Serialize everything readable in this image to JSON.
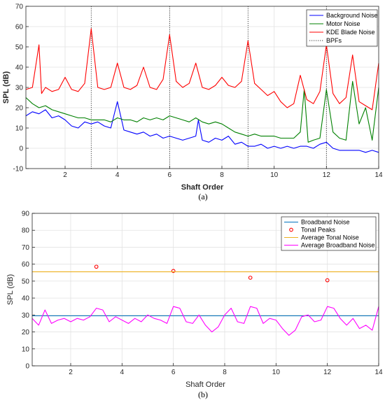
{
  "chart_data": [
    {
      "type": "line",
      "panel_label": "(a)",
      "xlabel": "Shaft Order",
      "ylabel": "SPL (dB)",
      "xlim": [
        0.5,
        14
      ],
      "ylim": [
        -10,
        70
      ],
      "xticks": [
        2,
        4,
        6,
        8,
        10,
        12,
        14
      ],
      "yticks": [
        -10,
        0,
        10,
        20,
        30,
        40,
        50,
        60,
        70
      ],
      "grid": true,
      "legend_position": "top-right",
      "vlines": {
        "name": "BPFs",
        "x": [
          3,
          6,
          9,
          12
        ]
      },
      "series": [
        {
          "name": "Background Noise",
          "color": "#0000ff",
          "x": [
            0.5,
            0.75,
            1,
            1.25,
            1.5,
            1.75,
            2,
            2.25,
            2.5,
            2.75,
            3,
            3.25,
            3.5,
            3.75,
            4,
            4.25,
            4.5,
            4.75,
            5,
            5.25,
            5.5,
            5.75,
            6,
            6.25,
            6.5,
            6.75,
            7,
            7.1,
            7.25,
            7.5,
            7.75,
            8,
            8.25,
            8.5,
            8.75,
            9,
            9.25,
            9.5,
            9.75,
            10,
            10.25,
            10.5,
            10.75,
            11,
            11.25,
            11.5,
            11.75,
            12,
            12.25,
            12.5,
            12.75,
            13,
            13.25,
            13.5,
            13.75,
            14
          ],
          "y": [
            16,
            18,
            17,
            19,
            15,
            16,
            14,
            11,
            10,
            13,
            12,
            13,
            11,
            10,
            23,
            9,
            8,
            7,
            8,
            6,
            7,
            5,
            6,
            5,
            4,
            5,
            6,
            14,
            4,
            3,
            5,
            4,
            6,
            2,
            3,
            1,
            1,
            2,
            0,
            1,
            0,
            1,
            0,
            1,
            1,
            0,
            2,
            3,
            0,
            -1,
            -1,
            -1,
            -1,
            -2,
            -1,
            -2
          ]
        },
        {
          "name": "Motor Noise",
          "color": "#008000",
          "x": [
            0.5,
            0.75,
            1,
            1.25,
            1.5,
            1.75,
            2,
            2.25,
            2.5,
            2.75,
            3,
            3.25,
            3.5,
            3.75,
            4,
            4.25,
            4.5,
            4.75,
            5,
            5.25,
            5.5,
            5.75,
            6,
            6.25,
            6.5,
            6.75,
            7,
            7.25,
            7.5,
            7.75,
            8,
            8.25,
            8.5,
            8.75,
            9,
            9.25,
            9.5,
            9.75,
            10,
            10.25,
            10.5,
            10.75,
            11,
            11.15,
            11.3,
            11.5,
            11.75,
            12,
            12.25,
            12.5,
            12.75,
            13,
            13.25,
            13.5,
            13.75,
            14
          ],
          "y": [
            25,
            22,
            20,
            21,
            19,
            18,
            17,
            16,
            15,
            15,
            14,
            14,
            14,
            13,
            15,
            14,
            14,
            13,
            15,
            14,
            15,
            14,
            16,
            15,
            14,
            13,
            15,
            13,
            12,
            13,
            12,
            10,
            8,
            7,
            6,
            7,
            6,
            6,
            6,
            5,
            5,
            5,
            8,
            29,
            3,
            4,
            5,
            29,
            8,
            5,
            4,
            33,
            12,
            20,
            4,
            30
          ]
        },
        {
          "name": "KDE Blade Noise",
          "color": "#ff0000",
          "x": [
            0.5,
            0.75,
            1,
            1.1,
            1.25,
            1.5,
            1.75,
            2,
            2.25,
            2.5,
            2.75,
            3,
            3.25,
            3.5,
            3.75,
            4,
            4.25,
            4.5,
            4.75,
            5,
            5.25,
            5.5,
            5.75,
            6,
            6.25,
            6.5,
            6.75,
            7,
            7.25,
            7.5,
            7.75,
            8,
            8.25,
            8.5,
            8.75,
            9,
            9.25,
            9.5,
            9.75,
            10,
            10.25,
            10.5,
            10.75,
            11,
            11.25,
            11.5,
            11.75,
            12,
            12.25,
            12.5,
            12.75,
            13,
            13.25,
            13.5,
            13.75,
            14
          ],
          "y": [
            29,
            30,
            51,
            27,
            30,
            28,
            29,
            35,
            29,
            28,
            32,
            59,
            30,
            29,
            30,
            42,
            30,
            29,
            31,
            40,
            30,
            29,
            34,
            56,
            33,
            30,
            32,
            42,
            30,
            29,
            31,
            35,
            31,
            30,
            33,
            53,
            32,
            29,
            26,
            28,
            23,
            20,
            22,
            36,
            24,
            22,
            28,
            51,
            27,
            22,
            25,
            46,
            23,
            21,
            19,
            42
          ]
        }
      ]
    },
    {
      "type": "line",
      "panel_label": "(b)",
      "xlabel": "Shaft Order",
      "ylabel": "SPL (dB)",
      "xlim": [
        0.5,
        14
      ],
      "ylim": [
        0,
        90
      ],
      "xticks": [
        2,
        4,
        6,
        8,
        10,
        12,
        14
      ],
      "yticks": [
        0,
        10,
        20,
        30,
        40,
        50,
        60,
        70,
        80,
        90
      ],
      "grid": true,
      "legend_position": "top-right",
      "series": [
        {
          "name": "Broadband Noise",
          "color": "#0072bd",
          "x": [
            0.5,
            14
          ],
          "y": [
            29.5,
            29.5
          ]
        },
        {
          "name": "Tonal Peaks",
          "color": "#ff0000",
          "marker": "circle",
          "x": [
            3,
            6,
            9,
            12
          ],
          "y": [
            58.5,
            56,
            52,
            50.5
          ]
        },
        {
          "name": "Average Tonal Noise",
          "color": "#edb120",
          "x": [
            0.5,
            14
          ],
          "y": [
            55.5,
            55.5
          ]
        },
        {
          "name": "Average Broadband Noise",
          "color": "#ff00ff",
          "x": [
            0.5,
            0.75,
            1,
            1.25,
            1.5,
            1.75,
            2,
            2.25,
            2.5,
            2.75,
            3,
            3.25,
            3.5,
            3.75,
            4,
            4.25,
            4.5,
            4.75,
            5,
            5.25,
            5.5,
            5.75,
            6,
            6.25,
            6.5,
            6.75,
            7,
            7.25,
            7.5,
            7.75,
            8,
            8.25,
            8.5,
            8.75,
            9,
            9.25,
            9.5,
            9.75,
            10,
            10.25,
            10.5,
            10.75,
            11,
            11.25,
            11.5,
            11.75,
            12,
            12.25,
            12.5,
            12.75,
            13,
            13.25,
            13.5,
            13.75,
            14
          ],
          "y": [
            28,
            24,
            33,
            25,
            27,
            28,
            26,
            28,
            27,
            29,
            34,
            33,
            26,
            29,
            27,
            25,
            28,
            26,
            30,
            28,
            27,
            25,
            35,
            34,
            26,
            25,
            30,
            24,
            20,
            23,
            30,
            34,
            26,
            25,
            35,
            34,
            25,
            28,
            27,
            22,
            18,
            21,
            29,
            30,
            26,
            27,
            35,
            34,
            28,
            24,
            28,
            22,
            24,
            21,
            35
          ]
        }
      ]
    }
  ]
}
